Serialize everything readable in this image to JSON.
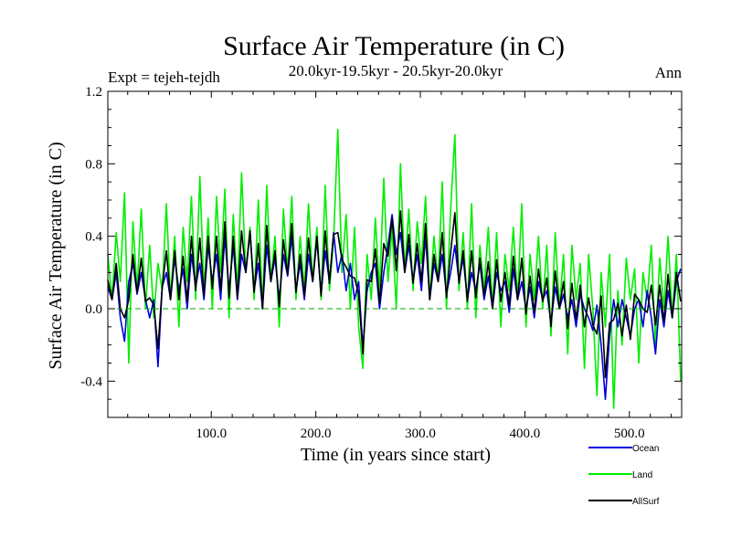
{
  "chart_data": {
    "type": "line",
    "title": "Surface Air Temperature (in C)",
    "subtitle": "20.0kyr-19.5kyr - 20.5kyr-20.0kyr",
    "left_label": "Expt = tejeh-tejdh",
    "right_label": "Ann",
    "xlabel": "Time (in years since start)",
    "ylabel": "Surface Air Temperature (in C)",
    "xlim": [
      1,
      550
    ],
    "ylim": [
      -0.6,
      1.2
    ],
    "x_ticks": [
      100,
      200,
      300,
      400,
      500
    ],
    "x_tick_labels": [
      "100.0",
      "200.0",
      "300.0",
      "400.0",
      "500.0"
    ],
    "y_ticks": [
      -0.4,
      0.0,
      0.4,
      0.8,
      1.2
    ],
    "y_tick_labels": [
      "-0.4",
      "0.0",
      "0.4",
      "0.8",
      "1.2"
    ],
    "zero_line": true,
    "series": [
      {
        "name": "Land",
        "color": "#00ee00",
        "x": [
          1,
          5,
          9,
          13,
          17,
          21,
          25,
          29,
          33,
          37,
          41,
          45,
          49,
          53,
          57,
          61,
          65,
          69,
          73,
          77,
          81,
          85,
          89,
          93,
          97,
          101,
          105,
          109,
          113,
          117,
          121,
          125,
          129,
          133,
          137,
          141,
          145,
          149,
          153,
          157,
          161,
          165,
          169,
          173,
          177,
          181,
          185,
          189,
          193,
          197,
          201,
          205,
          209,
          213,
          217,
          221,
          225,
          229,
          233,
          237,
          241,
          245,
          249,
          253,
          257,
          261,
          265,
          269,
          273,
          277,
          281,
          285,
          289,
          293,
          297,
          301,
          305,
          309,
          313,
          317,
          321,
          325,
          329,
          333,
          337,
          341,
          345,
          349,
          353,
          357,
          361,
          365,
          369,
          373,
          377,
          381,
          385,
          389,
          393,
          397,
          401,
          405,
          409,
          413,
          417,
          421,
          425,
          429,
          433,
          437,
          441,
          445,
          449,
          453,
          457,
          461,
          465,
          469,
          473,
          477,
          481,
          485,
          489,
          493,
          497,
          501,
          505,
          509,
          513,
          517,
          521,
          525,
          529,
          533,
          537,
          541,
          545,
          549
        ],
        "values": [
          0.3,
          0.05,
          0.42,
          0.15,
          0.64,
          -0.3,
          0.48,
          0.1,
          0.55,
          0.0,
          0.35,
          -0.05,
          0.25,
          0.1,
          0.58,
          0.05,
          0.4,
          -0.1,
          0.45,
          0.15,
          0.62,
          0.05,
          0.73,
          0.1,
          0.5,
          0.0,
          0.62,
          0.2,
          0.66,
          -0.05,
          0.52,
          0.1,
          0.75,
          0.2,
          0.45,
          0.05,
          0.6,
          0.0,
          0.68,
          0.15,
          0.4,
          -0.1,
          0.55,
          0.2,
          0.62,
          0.05,
          0.4,
          0.1,
          0.58,
          0.15,
          0.45,
          0.05,
          0.68,
          0.1,
          0.38,
          0.99,
          0.2,
          0.52,
          0.0,
          0.45,
          -0.1,
          -0.33,
          0.3,
          0.05,
          0.5,
          0.1,
          0.72,
          0.15,
          0.45,
          0.0,
          0.8,
          0.2,
          0.55,
          0.1,
          0.48,
          0.25,
          0.62,
          0.05,
          0.4,
          0.15,
          0.7,
          0.0,
          0.55,
          0.96,
          0.1,
          0.42,
          0.0,
          0.58,
          -0.05,
          0.35,
          0.1,
          0.45,
          0.0,
          0.42,
          -0.1,
          0.3,
          0.1,
          0.45,
          0.05,
          0.58,
          -0.1,
          0.3,
          0.05,
          0.4,
          0.0,
          0.35,
          -0.15,
          0.42,
          0.0,
          0.3,
          -0.25,
          0.35,
          0.05,
          0.25,
          -0.33,
          0.3,
          0.0,
          -0.48,
          0.2,
          -0.1,
          0.3,
          -0.55,
          0.1,
          -0.2,
          0.28,
          0.05,
          0.22,
          -0.3,
          0.2,
          0.05,
          0.35,
          -0.2,
          0.28,
          0.0,
          0.4,
          -0.05,
          0.3,
          -0.4
        ]
      },
      {
        "name": "Ocean",
        "color": "#0000dd",
        "x": [
          1,
          5,
          9,
          13,
          17,
          21,
          25,
          29,
          33,
          37,
          41,
          45,
          49,
          53,
          57,
          61,
          65,
          69,
          73,
          77,
          81,
          85,
          89,
          93,
          97,
          101,
          105,
          109,
          113,
          117,
          121,
          125,
          129,
          133,
          137,
          141,
          145,
          149,
          153,
          157,
          161,
          165,
          169,
          173,
          177,
          181,
          185,
          189,
          193,
          197,
          201,
          205,
          209,
          213,
          217,
          221,
          225,
          229,
          233,
          237,
          241,
          245,
          249,
          253,
          257,
          261,
          265,
          269,
          273,
          277,
          281,
          285,
          289,
          293,
          297,
          301,
          305,
          309,
          313,
          317,
          321,
          325,
          329,
          333,
          337,
          341,
          345,
          349,
          353,
          357,
          361,
          365,
          369,
          373,
          377,
          381,
          385,
          389,
          393,
          397,
          401,
          405,
          409,
          413,
          417,
          421,
          425,
          429,
          433,
          437,
          441,
          445,
          449,
          453,
          457,
          461,
          465,
          469,
          473,
          477,
          481,
          485,
          489,
          493,
          497,
          501,
          505,
          509,
          513,
          517,
          521,
          525,
          529,
          533,
          537,
          541,
          545,
          549
        ],
        "values": [
          0.12,
          0.05,
          0.2,
          -0.05,
          -0.18,
          0.15,
          0.25,
          0.08,
          0.2,
          0.05,
          -0.05,
          0.05,
          -0.32,
          0.12,
          0.2,
          0.05,
          0.28,
          0.1,
          0.22,
          0.0,
          0.3,
          0.12,
          0.25,
          0.05,
          0.35,
          0.15,
          0.3,
          0.05,
          0.4,
          0.1,
          0.35,
          0.05,
          0.3,
          0.2,
          0.42,
          0.1,
          0.25,
          0.0,
          0.35,
          0.15,
          0.28,
          0.05,
          0.3,
          0.18,
          0.4,
          0.1,
          0.25,
          0.05,
          0.3,
          0.15,
          0.38,
          0.08,
          0.32,
          0.15,
          0.42,
          0.2,
          0.3,
          0.1,
          0.25,
          0.05,
          0.15,
          -0.22,
          0.1,
          0.2,
          0.25,
          0.0,
          0.2,
          0.35,
          0.52,
          0.3,
          0.42,
          0.2,
          0.35,
          0.15,
          0.3,
          0.1,
          0.4,
          0.05,
          0.25,
          0.15,
          0.3,
          0.08,
          0.2,
          0.35,
          0.15,
          0.28,
          0.05,
          0.2,
          0.1,
          0.25,
          0.05,
          0.18,
          0.0,
          0.2,
          0.1,
          0.15,
          -0.02,
          0.22,
          0.05,
          0.15,
          0.0,
          0.12,
          -0.05,
          0.15,
          0.05,
          0.1,
          -0.08,
          0.12,
          0.0,
          0.08,
          -0.05,
          0.05,
          -0.1,
          0.08,
          0.0,
          -0.05,
          -0.12,
          0.02,
          -0.2,
          -0.5,
          -0.15,
          0.05,
          -0.1,
          0.05,
          -0.05,
          -0.15,
          0.0,
          0.05,
          -0.1,
          0.1,
          -0.05,
          -0.25,
          0.05,
          -0.1,
          0.1,
          -0.05,
          0.15,
          0.22
        ]
      },
      {
        "name": "AllSurf",
        "color": "#000000",
        "x": [
          1,
          5,
          9,
          13,
          17,
          21,
          25,
          29,
          33,
          37,
          41,
          45,
          49,
          53,
          57,
          61,
          65,
          69,
          73,
          77,
          81,
          85,
          89,
          93,
          97,
          101,
          105,
          109,
          113,
          117,
          121,
          125,
          129,
          133,
          137,
          141,
          145,
          149,
          153,
          157,
          161,
          165,
          169,
          173,
          177,
          181,
          185,
          189,
          193,
          197,
          201,
          205,
          209,
          213,
          217,
          221,
          225,
          229,
          233,
          237,
          241,
          245,
          249,
          253,
          257,
          261,
          265,
          269,
          273,
          277,
          281,
          285,
          289,
          293,
          297,
          301,
          305,
          309,
          313,
          317,
          321,
          325,
          329,
          333,
          337,
          341,
          345,
          349,
          353,
          357,
          361,
          365,
          369,
          373,
          377,
          381,
          385,
          389,
          393,
          397,
          401,
          405,
          409,
          413,
          417,
          421,
          425,
          429,
          433,
          437,
          441,
          445,
          449,
          453,
          457,
          461,
          465,
          469,
          473,
          477,
          481,
          485,
          489,
          493,
          497,
          501,
          505,
          509,
          513,
          517,
          521,
          525,
          529,
          533,
          537,
          541,
          545,
          549
        ],
        "values": [
          0.16,
          0.05,
          0.25,
          0.0,
          -0.05,
          0.05,
          0.3,
          0.09,
          0.28,
          0.04,
          0.06,
          0.02,
          -0.22,
          0.12,
          0.32,
          0.05,
          0.32,
          0.05,
          0.29,
          0.04,
          0.4,
          0.1,
          0.39,
          0.07,
          0.4,
          0.11,
          0.4,
          0.1,
          0.48,
          0.06,
          0.4,
          0.06,
          0.43,
          0.2,
          0.43,
          0.09,
          0.36,
          0.0,
          0.46,
          0.15,
          0.32,
          0.01,
          0.38,
          0.19,
          0.47,
          0.09,
          0.3,
          0.07,
          0.39,
          0.15,
          0.4,
          0.07,
          0.43,
          0.14,
          0.41,
          0.42,
          0.27,
          0.23,
          0.18,
          0.17,
          0.08,
          -0.25,
          0.16,
          0.15,
          0.33,
          0.03,
          0.36,
          0.29,
          0.5,
          0.21,
          0.54,
          0.2,
          0.41,
          0.14,
          0.36,
          0.15,
          0.47,
          0.05,
          0.3,
          0.15,
          0.42,
          0.06,
          0.31,
          0.53,
          0.14,
          0.32,
          0.04,
          0.32,
          0.06,
          0.28,
          0.07,
          0.26,
          0.0,
          0.27,
          0.04,
          0.2,
          0.02,
          0.29,
          0.05,
          0.28,
          -0.03,
          0.18,
          -0.02,
          0.22,
          0.04,
          0.17,
          -0.1,
          0.21,
          0.0,
          0.15,
          -0.11,
          0.14,
          -0.06,
          0.13,
          -0.1,
          0.06,
          -0.09,
          -0.14,
          0.07,
          -0.38,
          -0.08,
          -0.06,
          0.03,
          -0.15,
          0.02,
          -0.17,
          0.08,
          0.05,
          0.0,
          -0.02,
          0.13,
          -0.09,
          0.13,
          -0.07,
          0.19,
          -0.05,
          0.2,
          0.04
        ]
      }
    ],
    "legend": {
      "placement": "bottom-right",
      "entries": [
        {
          "label": "Ocean",
          "color": "#0000dd"
        },
        {
          "label": "Land",
          "color": "#00ee00"
        },
        {
          "label": "AllSurf",
          "color": "#000000"
        }
      ]
    }
  }
}
